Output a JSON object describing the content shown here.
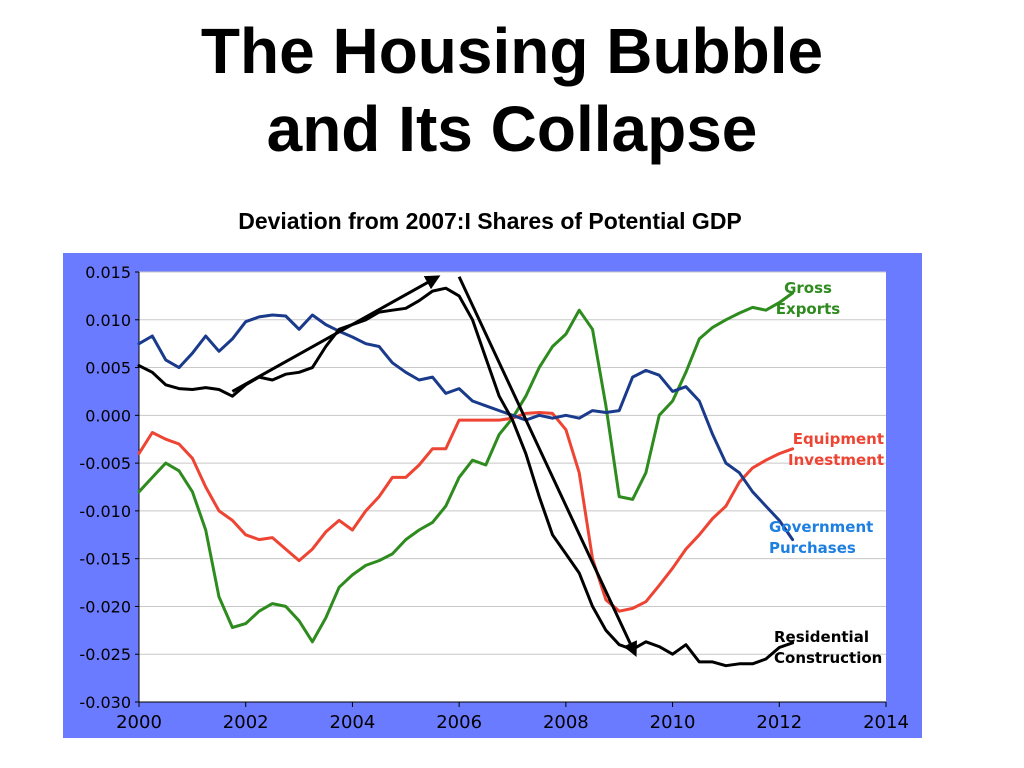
{
  "slide": {
    "title_line1": "The Housing Bubble",
    "title_line2": "and Its Collapse"
  },
  "colors": {
    "frame": "#6b7bff",
    "plot_bg": "#ffffff",
    "grid": "#c8c8c8",
    "gross_exports": "#2e8b1e",
    "equipment_investment": "#ee4433",
    "government_purchases": "#1a3a8c",
    "residential_construction": "#000000",
    "government_label": "#1e7fe0"
  },
  "chart_data": {
    "type": "line",
    "title": "Deviation from 2007:I Shares of Potential GDP",
    "xlim": [
      2000,
      2014
    ],
    "ylim": [
      -0.03,
      0.015
    ],
    "x_ticks": [
      2000,
      2002,
      2004,
      2006,
      2008,
      2010,
      2012,
      2014
    ],
    "x_tick_labels": [
      "2000",
      "2002",
      "2004",
      "2006",
      "2008",
      "2010",
      "2012",
      "2014"
    ],
    "y_ticks": [
      0.015,
      0.01,
      0.005,
      0.0,
      -0.005,
      -0.01,
      -0.015,
      -0.02,
      -0.025,
      -0.03
    ],
    "y_tick_labels": [
      "0.015",
      "0.010",
      "0.005",
      "0.000",
      "-0.005",
      "-0.010",
      "-0.015",
      "-0.020",
      "-0.025",
      "-0.030"
    ],
    "grid": "horizontal",
    "series": [
      {
        "name": "Gross Exports",
        "label_lines": [
          "Gross",
          "Exports"
        ],
        "color_key": "gross_exports",
        "points": [
          [
            2000.0,
            -0.008
          ],
          [
            2000.25,
            -0.0065
          ],
          [
            2000.5,
            -0.005
          ],
          [
            2000.75,
            -0.0058
          ],
          [
            2001.0,
            -0.008
          ],
          [
            2001.25,
            -0.012
          ],
          [
            2001.5,
            -0.019
          ],
          [
            2001.75,
            -0.0222
          ],
          [
            2002.0,
            -0.0218
          ],
          [
            2002.25,
            -0.0205
          ],
          [
            2002.5,
            -0.0197
          ],
          [
            2002.75,
            -0.02
          ],
          [
            2003.0,
            -0.0215
          ],
          [
            2003.25,
            -0.0237
          ],
          [
            2003.5,
            -0.0212
          ],
          [
            2003.75,
            -0.018
          ],
          [
            2004.0,
            -0.0167
          ],
          [
            2004.25,
            -0.0157
          ],
          [
            2004.5,
            -0.0152
          ],
          [
            2004.75,
            -0.0145
          ],
          [
            2005.0,
            -0.013
          ],
          [
            2005.25,
            -0.012
          ],
          [
            2005.5,
            -0.0112
          ],
          [
            2005.75,
            -0.0095
          ],
          [
            2006.0,
            -0.0065
          ],
          [
            2006.25,
            -0.0047
          ],
          [
            2006.5,
            -0.0052
          ],
          [
            2006.75,
            -0.002
          ],
          [
            2007.0,
            -0.0003
          ],
          [
            2007.25,
            0.002
          ],
          [
            2007.5,
            0.005
          ],
          [
            2007.75,
            0.0072
          ],
          [
            2008.0,
            0.0085
          ],
          [
            2008.25,
            0.011
          ],
          [
            2008.5,
            0.009
          ],
          [
            2008.75,
            0.001
          ],
          [
            2009.0,
            -0.0085
          ],
          [
            2009.25,
            -0.0088
          ],
          [
            2009.5,
            -0.006
          ],
          [
            2009.75,
            0.0
          ],
          [
            2010.0,
            0.0015
          ],
          [
            2010.25,
            0.0045
          ],
          [
            2010.5,
            0.008
          ],
          [
            2010.75,
            0.0092
          ],
          [
            2011.0,
            0.01
          ],
          [
            2011.25,
            0.0107
          ],
          [
            2011.5,
            0.0113
          ],
          [
            2011.75,
            0.011
          ],
          [
            2012.0,
            0.0118
          ],
          [
            2012.25,
            0.0128
          ]
        ]
      },
      {
        "name": "Equipment Investment",
        "label_lines": [
          "Equipment",
          "Investment"
        ],
        "color_key": "equipment_investment",
        "points": [
          [
            2000.0,
            -0.004
          ],
          [
            2000.25,
            -0.0018
          ],
          [
            2000.5,
            -0.0025
          ],
          [
            2000.75,
            -0.003
          ],
          [
            2001.0,
            -0.0045
          ],
          [
            2001.25,
            -0.0075
          ],
          [
            2001.5,
            -0.01
          ],
          [
            2001.75,
            -0.011
          ],
          [
            2002.0,
            -0.0125
          ],
          [
            2002.25,
            -0.013
          ],
          [
            2002.5,
            -0.0128
          ],
          [
            2002.75,
            -0.014
          ],
          [
            2003.0,
            -0.0152
          ],
          [
            2003.25,
            -0.014
          ],
          [
            2003.5,
            -0.0122
          ],
          [
            2003.75,
            -0.011
          ],
          [
            2004.0,
            -0.012
          ],
          [
            2004.25,
            -0.01
          ],
          [
            2004.5,
            -0.0085
          ],
          [
            2004.75,
            -0.0065
          ],
          [
            2005.0,
            -0.0065
          ],
          [
            2005.25,
            -0.0052
          ],
          [
            2005.5,
            -0.0035
          ],
          [
            2005.75,
            -0.0035
          ],
          [
            2006.0,
            -0.0005
          ],
          [
            2006.25,
            -0.0005
          ],
          [
            2006.5,
            -0.0005
          ],
          [
            2006.75,
            -0.0005
          ],
          [
            2007.0,
            -0.0003
          ],
          [
            2007.25,
            0.0002
          ],
          [
            2007.5,
            0.0003
          ],
          [
            2007.75,
            0.0002
          ],
          [
            2008.0,
            -0.0015
          ],
          [
            2008.25,
            -0.006
          ],
          [
            2008.5,
            -0.015
          ],
          [
            2008.75,
            -0.0193
          ],
          [
            2009.0,
            -0.0205
          ],
          [
            2009.25,
            -0.0202
          ],
          [
            2009.5,
            -0.0195
          ],
          [
            2009.75,
            -0.0178
          ],
          [
            2010.0,
            -0.016
          ],
          [
            2010.25,
            -0.014
          ],
          [
            2010.5,
            -0.0125
          ],
          [
            2010.75,
            -0.0108
          ],
          [
            2011.0,
            -0.0095
          ],
          [
            2011.25,
            -0.007
          ],
          [
            2011.5,
            -0.0055
          ],
          [
            2011.75,
            -0.0047
          ],
          [
            2012.0,
            -0.004
          ],
          [
            2012.25,
            -0.0035
          ]
        ]
      },
      {
        "name": "Government Purchases",
        "label_lines": [
          "Government",
          "Purchases"
        ],
        "color_key": "government_purchases",
        "points": [
          [
            2000.0,
            0.0075
          ],
          [
            2000.25,
            0.0083
          ],
          [
            2000.5,
            0.0058
          ],
          [
            2000.75,
            0.005
          ],
          [
            2001.0,
            0.0065
          ],
          [
            2001.25,
            0.0083
          ],
          [
            2001.5,
            0.0067
          ],
          [
            2001.75,
            0.008
          ],
          [
            2002.0,
            0.0098
          ],
          [
            2002.25,
            0.0103
          ],
          [
            2002.5,
            0.0105
          ],
          [
            2002.75,
            0.0104
          ],
          [
            2003.0,
            0.009
          ],
          [
            2003.25,
            0.0105
          ],
          [
            2003.5,
            0.0095
          ],
          [
            2003.75,
            0.0088
          ],
          [
            2004.0,
            0.0082
          ],
          [
            2004.25,
            0.0075
          ],
          [
            2004.5,
            0.0072
          ],
          [
            2004.75,
            0.0055
          ],
          [
            2005.0,
            0.0045
          ],
          [
            2005.25,
            0.0037
          ],
          [
            2005.5,
            0.004
          ],
          [
            2005.75,
            0.0023
          ],
          [
            2006.0,
            0.0028
          ],
          [
            2006.25,
            0.0015
          ],
          [
            2006.5,
            0.001
          ],
          [
            2006.75,
            0.0005
          ],
          [
            2007.0,
            0.0
          ],
          [
            2007.25,
            -0.0005
          ],
          [
            2007.5,
            0.0
          ],
          [
            2007.75,
            -0.0003
          ],
          [
            2008.0,
            0.0
          ],
          [
            2008.25,
            -0.0003
          ],
          [
            2008.5,
            0.0005
          ],
          [
            2008.75,
            0.0003
          ],
          [
            2009.0,
            0.0005
          ],
          [
            2009.25,
            0.004
          ],
          [
            2009.5,
            0.0047
          ],
          [
            2009.75,
            0.0042
          ],
          [
            2010.0,
            0.0025
          ],
          [
            2010.25,
            0.003
          ],
          [
            2010.5,
            0.0015
          ],
          [
            2010.75,
            -0.002
          ],
          [
            2011.0,
            -0.005
          ],
          [
            2011.25,
            -0.006
          ],
          [
            2011.5,
            -0.008
          ],
          [
            2011.75,
            -0.0095
          ],
          [
            2012.0,
            -0.011
          ],
          [
            2012.25,
            -0.013
          ]
        ]
      },
      {
        "name": "Residential Construction",
        "label_lines": [
          "Residential",
          "Construction"
        ],
        "color_key": "residential_construction",
        "points": [
          [
            2000.0,
            0.0052
          ],
          [
            2000.25,
            0.0045
          ],
          [
            2000.5,
            0.0032
          ],
          [
            2000.75,
            0.0028
          ],
          [
            2001.0,
            0.0027
          ],
          [
            2001.25,
            0.0029
          ],
          [
            2001.5,
            0.0027
          ],
          [
            2001.75,
            0.002
          ],
          [
            2002.0,
            0.0032
          ],
          [
            2002.25,
            0.004
          ],
          [
            2002.5,
            0.0037
          ],
          [
            2002.75,
            0.0043
          ],
          [
            2003.0,
            0.0045
          ],
          [
            2003.25,
            0.005
          ],
          [
            2003.5,
            0.0072
          ],
          [
            2003.75,
            0.009
          ],
          [
            2004.0,
            0.0095
          ],
          [
            2004.25,
            0.01
          ],
          [
            2004.5,
            0.0108
          ],
          [
            2004.75,
            0.011
          ],
          [
            2005.0,
            0.0112
          ],
          [
            2005.25,
            0.012
          ],
          [
            2005.5,
            0.013
          ],
          [
            2005.75,
            0.0133
          ],
          [
            2006.0,
            0.0125
          ],
          [
            2006.25,
            0.01
          ],
          [
            2006.5,
            0.006
          ],
          [
            2006.75,
            0.002
          ],
          [
            2007.0,
            -0.0005
          ],
          [
            2007.25,
            -0.004
          ],
          [
            2007.5,
            -0.0085
          ],
          [
            2007.75,
            -0.0125
          ],
          [
            2008.0,
            -0.0145
          ],
          [
            2008.25,
            -0.0165
          ],
          [
            2008.5,
            -0.02
          ],
          [
            2008.75,
            -0.0225
          ],
          [
            2009.0,
            -0.024
          ],
          [
            2009.25,
            -0.0245
          ],
          [
            2009.5,
            -0.0237
          ],
          [
            2009.75,
            -0.0242
          ],
          [
            2010.0,
            -0.025
          ],
          [
            2010.25,
            -0.024
          ],
          [
            2010.5,
            -0.0258
          ],
          [
            2010.75,
            -0.0258
          ],
          [
            2011.0,
            -0.0262
          ],
          [
            2011.25,
            -0.026
          ],
          [
            2011.5,
            -0.026
          ],
          [
            2011.75,
            -0.0255
          ],
          [
            2012.0,
            -0.0243
          ],
          [
            2012.25,
            -0.0238
          ]
        ]
      }
    ],
    "annotations": {
      "arrows": [
        {
          "name": "boom-arrow",
          "from": [
            2001.75,
            0.0025
          ],
          "to": [
            2005.6,
            0.0145
          ]
        },
        {
          "name": "bust-arrow",
          "from": [
            2006.0,
            0.0145
          ],
          "to": [
            2009.3,
            -0.025
          ]
        }
      ]
    }
  }
}
